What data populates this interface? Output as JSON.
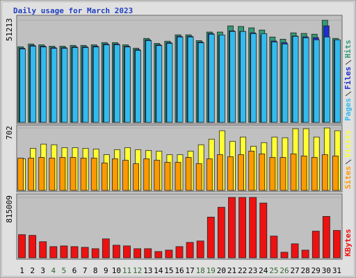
{
  "chart_data": [
    {
      "type": "grouped-bar",
      "title": "Daily usage for March 2023",
      "series": [
        {
          "name": "Hits",
          "color": "#339977",
          "values": [
            37900,
            39300,
            38900,
            38200,
            38200,
            38600,
            38600,
            38900,
            40000,
            40000,
            38900,
            37200,
            42100,
            39600,
            40700,
            43900,
            43900,
            41000,
            45300,
            45300,
            48400,
            48100,
            47400,
            46300,
            42800,
            41700,
            44900,
            44600,
            44200,
            51213,
            42100
          ]
        },
        {
          "name": "Files",
          "color": "#1e2ecc",
          "values": [
            37200,
            38600,
            38200,
            37500,
            37500,
            37900,
            37900,
            38200,
            39300,
            39300,
            38200,
            36500,
            41400,
            38900,
            40000,
            43200,
            43200,
            40300,
            44600,
            43600,
            45900,
            45600,
            44900,
            43800,
            40800,
            40000,
            43300,
            42900,
            42500,
            48400,
            41400
          ]
        },
        {
          "name": "Pages",
          "color": "#33bbee",
          "values": [
            36800,
            38200,
            37800,
            37100,
            37100,
            37500,
            37500,
            37800,
            38900,
            38900,
            37800,
            36100,
            41000,
            38500,
            39600,
            42800,
            42800,
            39900,
            44200,
            43800,
            45600,
            45600,
            44500,
            44500,
            40300,
            39300,
            43100,
            42400,
            41400,
            42800,
            41400
          ]
        }
      ],
      "ylim": [
        0,
        53700
      ],
      "yticks": [
        51213
      ]
    },
    {
      "type": "grouped-bar",
      "series": [
        {
          "name": "Visits",
          "color": "#ffff33",
          "values": [
            355,
            473,
            521,
            513,
            481,
            481,
            473,
            465,
            402,
            458,
            481,
            458,
            450,
            442,
            402,
            402,
            442,
            513,
            576,
            671,
            552,
            600,
            497,
            537,
            600,
            592,
            694,
            694,
            600,
            702,
            671
          ]
        },
        {
          "name": "Sites",
          "color": "#ff9900",
          "values": [
            363,
            363,
            371,
            363,
            371,
            371,
            363,
            363,
            308,
            355,
            339,
            300,
            355,
            339,
            316,
            316,
            371,
            300,
            355,
            402,
            379,
            402,
            442,
            410,
            371,
            371,
            410,
            387,
            371,
            402,
            387
          ]
        }
      ],
      "ylim": [
        0,
        734
      ],
      "yticks": [
        702
      ]
    },
    {
      "type": "bar",
      "series": [
        {
          "name": "KBytes",
          "color": "#ee1111",
          "values": [
            312741,
            303264,
            217971,
            151632,
            161109,
            151632,
            142155,
            123201,
            255879,
            170586,
            161109,
            123201,
            123201,
            85293,
            104247,
            151632,
            208494,
            227448,
            549666,
            682344,
            815009,
            815009,
            815009,
            739206,
            293787,
            75816,
            189540,
            104247,
            360126,
            559143,
            369603
          ]
        }
      ],
      "ylim": [
        0,
        862400
      ],
      "yticks": [
        815009
      ],
      "categories": [
        "1",
        "2",
        "3",
        "4",
        "5",
        "6",
        "7",
        "8",
        "9",
        "10",
        "11",
        "12",
        "13",
        "14",
        "15",
        "16",
        "17",
        "18",
        "19",
        "20",
        "21",
        "22",
        "23",
        "24",
        "25",
        "26",
        "27",
        "28",
        "29",
        "30",
        "31"
      ],
      "category_colors": [
        "#000000",
        "#000000",
        "#000000",
        "#336633",
        "#336633",
        "#000000",
        "#000000",
        "#000000",
        "#000000",
        "#000000",
        "#336633",
        "#336633",
        "#000000",
        "#000000",
        "#000000",
        "#000000",
        "#000000",
        "#336633",
        "#336633",
        "#000000",
        "#000000",
        "#000000",
        "#000000",
        "#000000",
        "#336633",
        "#336633",
        "#000000",
        "#000000",
        "#000000",
        "#000000",
        "#000000"
      ]
    }
  ]
}
